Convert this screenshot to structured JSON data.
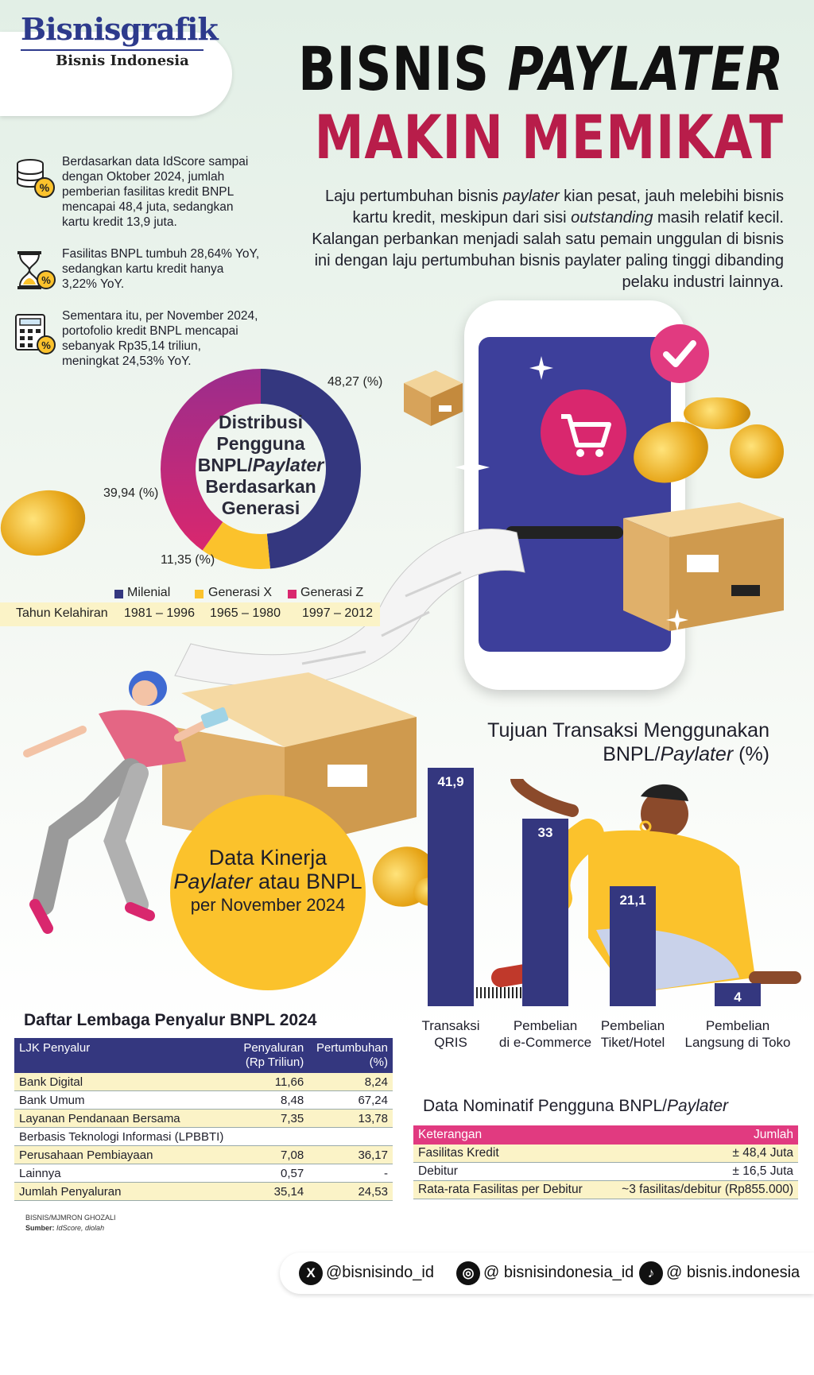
{
  "brand": {
    "logo": "Bisnisgrafik",
    "sub": "Bisnis Indonesia"
  },
  "header": {
    "title_line1_a": "BISNIS ",
    "title_line1_b": "PAYLATER",
    "title_line2": "MAKIN MEMIKAT"
  },
  "intro": {
    "part1": "Laju pertumbuhan bisnis ",
    "em1": "paylater",
    "part2": " kian pesat, jauh melebihi bisnis kartu kredit, meskipun dari sisi ",
    "em2": "outstanding",
    "part3": " masih relatif kecil. Kalangan perbankan menjadi salah satu pemain unggulan di bisnis ini dengan laju pertumbuhan bisnis paylater paling tinggi dibanding pelaku industri lainnya."
  },
  "facts": [
    {
      "icon": "coins-percent-icon",
      "text": "Berdasarkan data IdScore sampai dengan Oktober 2024, jumlah pemberian fasilitas kredit BNPL mencapai 48,4 juta, sedangkan kartu kredit 13,9 juta."
    },
    {
      "icon": "hourglass-percent-icon",
      "text": "Fasilitas BNPL tumbuh 28,64% YoY, sedangkan kartu kredit hanya 3,22% YoY."
    },
    {
      "icon": "calculator-percent-icon",
      "text": "Sementara itu, per November 2024, portofolio kredit BNPL mencapai sebanyak Rp35,14 triliun, meningkat 24,53% YoY."
    }
  ],
  "donut": {
    "title_l1": "Distribusi",
    "title_l2": "Pengguna",
    "title_l3a": "BNPL/",
    "title_l3b": "Paylater",
    "title_l4": "Berdasarkan",
    "title_l5": "Generasi",
    "slices": [
      {
        "name": "Milenial",
        "value": 48.27,
        "label": "48,27 (%)",
        "years": "1981 – 1996",
        "color": "#34377f"
      },
      {
        "name": "Generasi X",
        "value": 11.35,
        "label": "11,35 (%)",
        "years": "1965 – 1980",
        "color": "#fbc22c"
      },
      {
        "name": "Generasi Z",
        "value": 39.94,
        "label": "39,94 (%)",
        "years": "1997 – 2012",
        "color": "#d9276e"
      }
    ],
    "legend_row_label": "Tahun Kelahiran"
  },
  "kinerja": {
    "l1": "Data Kinerja",
    "l2a": "Paylater",
    "l2b": " atau BNPL",
    "l3": "per November 2024"
  },
  "chart_data": {
    "type": "bar",
    "title": "Tujuan Transaksi Menggunakan BNPL/Paylater (%)",
    "title_l1": "Tujuan Transaksi Menggunakan",
    "title_l2a": "BNPL/",
    "title_l2b": "Paylater",
    "title_l2c": " (%)",
    "categories": [
      "Transaksi QRIS",
      "Pembelian di e-Commerce",
      "Pembelian Tiket/Hotel",
      "Pembelian Langsung di Toko"
    ],
    "category_lines": [
      [
        "Transaksi",
        "QRIS"
      ],
      [
        "Pembelian",
        "di e-Commerce"
      ],
      [
        "Pembelian",
        "Tiket/Hotel"
      ],
      [
        "Pembelian",
        "Langsung di Toko"
      ]
    ],
    "values": [
      41.9,
      33,
      21.1,
      4
    ],
    "value_labels": [
      "41,9",
      "33",
      "21,1",
      "4"
    ],
    "ylim": [
      0,
      41.9
    ],
    "bar_color": "#34377f",
    "grid": false
  },
  "table1": {
    "title": "Daftar Lembaga Penyalur BNPL 2024",
    "head": {
      "col1": "LJK Penyalur",
      "col2a": "Penyaluran",
      "col2b": "(Rp Triliun)",
      "col3a": "Pertumbuhan",
      "col3b": "(%)"
    },
    "rows": [
      {
        "name": "Bank Digital",
        "amount": "11,66",
        "growth": "8,24"
      },
      {
        "name": "Bank Umum",
        "amount": "8,48",
        "growth": "67,24"
      },
      {
        "name": "Layanan Pendanaan Bersama",
        "amount": "7,35",
        "growth": "13,78"
      },
      {
        "name": "Berbasis Teknologi Informasi (LPBBTI)",
        "amount": "",
        "growth": ""
      },
      {
        "name": "Perusahaan Pembiayaan",
        "amount": "7,08",
        "growth": "36,17"
      },
      {
        "name": "Lainnya",
        "amount": "0,57",
        "growth": "-"
      },
      {
        "name": "Jumlah Penyaluran",
        "amount": "35,14",
        "growth": "24,53"
      }
    ]
  },
  "credit": {
    "author": "BISNIS/MJMRON GHOZALI",
    "source_label": "Sumber:",
    "source": "IdScore, diolah"
  },
  "table2": {
    "title_a": "Data Nominatif Pengguna BNPL/",
    "title_b": "Paylater",
    "head": {
      "col1": "Keterangan",
      "col2": "Jumlah"
    },
    "rows": [
      {
        "name": "Fasilitas Kredit",
        "value": "± 48,4 Juta"
      },
      {
        "name": "Debitur",
        "value": "± 16,5 Juta"
      },
      {
        "name": "Rata-rata Fasilitas per Debitur",
        "value": "~3 fasilitas/debitur (Rp855.000)"
      }
    ]
  },
  "socials": [
    {
      "icon": "x-icon",
      "glyph": "X",
      "handle": "@bisnisindo_id"
    },
    {
      "icon": "instagram-icon",
      "glyph": "◎",
      "handle": "@ bisnisindonesia_id"
    },
    {
      "icon": "tiktok-icon",
      "glyph": "♪",
      "handle": "@ bisnis.indonesia"
    }
  ]
}
